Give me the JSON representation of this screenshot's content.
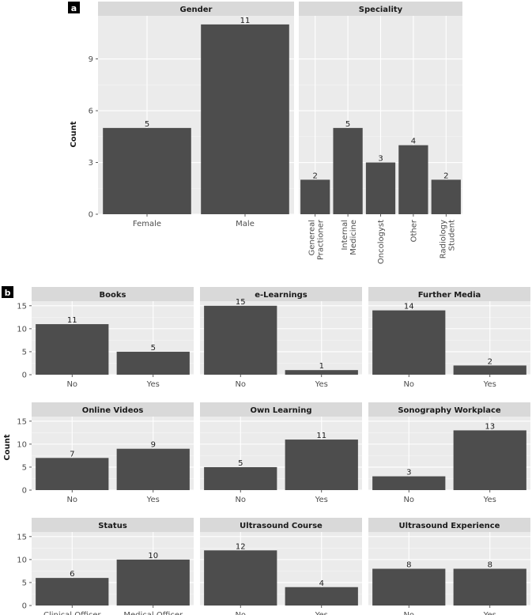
{
  "chart_data": [
    {
      "type": "bar",
      "panel_tag": "a",
      "ylabel": "Count",
      "ylim": [
        0,
        11.5
      ],
      "yticks": [
        0,
        3,
        6,
        9
      ],
      "facets": [
        {
          "title": "Gender",
          "categories": [
            "Female",
            "Male"
          ],
          "values": [
            5,
            11
          ]
        },
        {
          "title": "Speciality",
          "categories": [
            "Genereal Practioner",
            "Internal Medicine",
            "Oncologyst",
            "Other",
            "Radiology Student"
          ],
          "values": [
            2,
            5,
            3,
            4,
            2
          ]
        }
      ],
      "grid": true,
      "bar_color": "#4d4d4d",
      "panel_bg": "#ebebeb",
      "strip_bg": "#d9d9d9"
    },
    {
      "type": "bar",
      "panel_tag": "b",
      "ylabel": "Count",
      "ylim": [
        0,
        16
      ],
      "yticks": [
        0,
        5,
        10,
        15
      ],
      "facets": [
        {
          "title": "Books",
          "categories": [
            "No",
            "Yes"
          ],
          "values": [
            11,
            5
          ]
        },
        {
          "title": "e-Learnings",
          "categories": [
            "No",
            "Yes"
          ],
          "values": [
            15,
            1
          ]
        },
        {
          "title": "Further Media",
          "categories": [
            "No",
            "Yes"
          ],
          "values": [
            14,
            2
          ]
        },
        {
          "title": "Online Videos",
          "categories": [
            "No",
            "Yes"
          ],
          "values": [
            7,
            9
          ]
        },
        {
          "title": "Own Learning",
          "categories": [
            "No",
            "Yes"
          ],
          "values": [
            5,
            11
          ]
        },
        {
          "title": "Sonography Workplace",
          "categories": [
            "No",
            "Yes"
          ],
          "values": [
            3,
            13
          ]
        },
        {
          "title": "Status",
          "categories": [
            "Clinical Officer",
            "Medical Officer"
          ],
          "values": [
            6,
            10
          ]
        },
        {
          "title": "Ultrasound Course",
          "categories": [
            "No",
            "Yes"
          ],
          "values": [
            12,
            4
          ]
        },
        {
          "title": "Ultrasound Experience",
          "categories": [
            "No",
            "Yes"
          ],
          "values": [
            8,
            8
          ]
        }
      ],
      "grid": true,
      "bar_color": "#4d4d4d",
      "panel_bg": "#ebebeb",
      "strip_bg": "#d9d9d9"
    }
  ]
}
